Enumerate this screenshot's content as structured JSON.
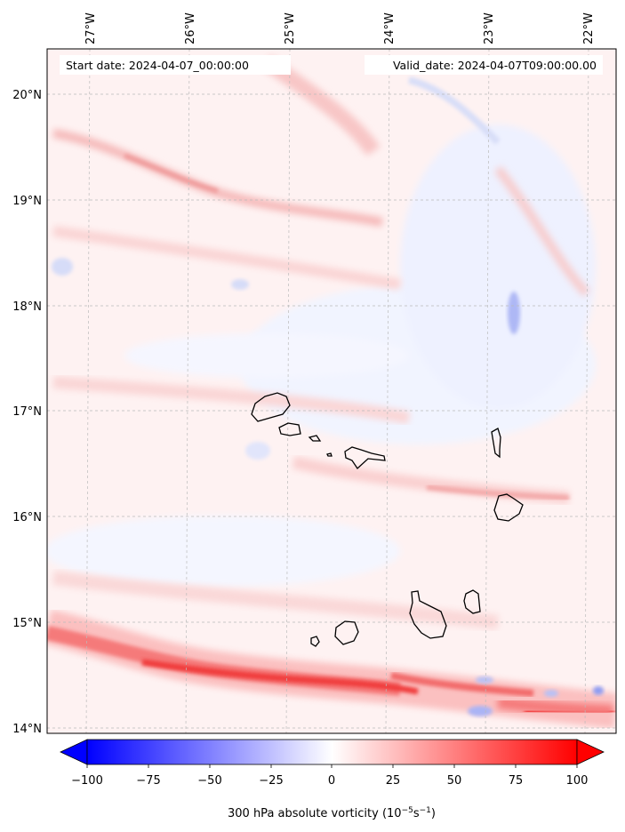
{
  "header": {
    "start_date": "Start date: 2024-04-07_00:00:00",
    "valid_date": "Valid_date: 2024-04-07T09:00:00.00"
  },
  "map": {
    "lon_labels": [
      "27°W",
      "26°W",
      "25°W",
      "24°W",
      "23°W",
      "22°W"
    ],
    "lat_labels": [
      "20°N",
      "19°N",
      "18°N",
      "17°N",
      "16°N",
      "15°N",
      "14°N"
    ],
    "extent": {
      "lon": [
        -27.4,
        -21.7
      ],
      "lat": [
        13.95,
        20.42
      ]
    },
    "coastline_color": "#000000",
    "gridline_color": "#bbbbbb",
    "gridlines": true
  },
  "colorbar": {
    "label": "300 hPa absolute vorticity (10",
    "label_exp": "−5",
    "label_unit": "s",
    "label_exp2": "−1",
    "label_close": ")",
    "ticks": [
      "−100",
      "−75",
      "−50",
      "−25",
      "0",
      "25",
      "50",
      "75",
      "100"
    ],
    "range": [
      -100,
      100
    ],
    "color_negative": "#0000ff",
    "color_zero": "#ffffff",
    "color_positive": "#ff0000",
    "extend": "both"
  }
}
